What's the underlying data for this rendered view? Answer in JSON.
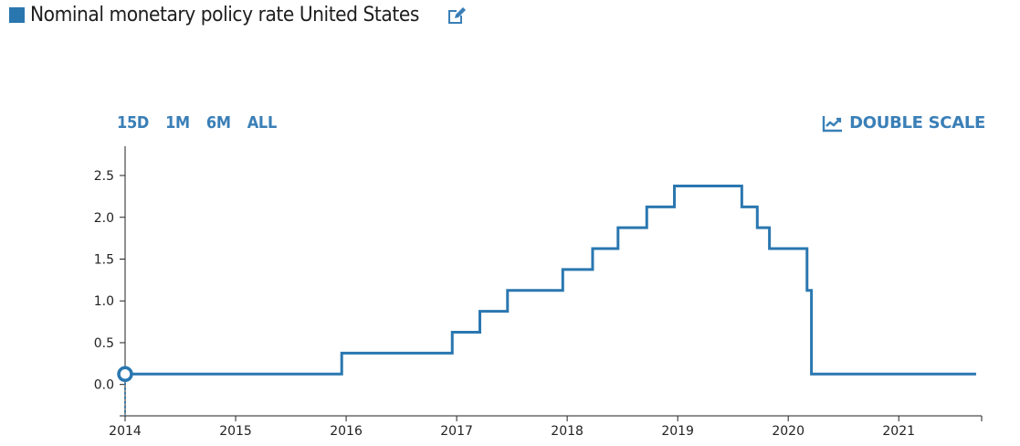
{
  "title": "Nominal monetary policy rate United States",
  "colors": {
    "series": "#2a77b0",
    "accent": "#3a7fb7",
    "axis": "#222222"
  },
  "icons": {
    "edit": "edit-icon",
    "double_scale": "line-chart-icon"
  },
  "controls": {
    "ranges": [
      "15D",
      "1M",
      "6M",
      "ALL"
    ],
    "double_scale_label": "DOUBLE SCALE"
  },
  "chart_data": {
    "type": "line",
    "step": true,
    "x_start": 2014.0,
    "x_end": 2021.75,
    "ylim": [
      -0.375,
      2.85
    ],
    "yticks": [
      "0.0",
      "0.5",
      "1.0",
      "1.5",
      "2.0",
      "2.5"
    ],
    "xticks": [
      "2014",
      "2015",
      "2016",
      "2017",
      "2018",
      "2019",
      "2020",
      "2021"
    ],
    "grid": false,
    "marker_at_start": true,
    "series": [
      {
        "values": [
          [
            2014.0,
            0.125
          ],
          [
            2015.96,
            0.375
          ],
          [
            2016.96,
            0.625
          ],
          [
            2017.21,
            0.875
          ],
          [
            2017.46,
            1.125
          ],
          [
            2017.96,
            1.375
          ],
          [
            2018.23,
            1.625
          ],
          [
            2018.46,
            1.875
          ],
          [
            2018.72,
            2.125
          ],
          [
            2018.97,
            2.375
          ],
          [
            2019.58,
            2.125
          ],
          [
            2019.72,
            1.875
          ],
          [
            2019.83,
            1.625
          ],
          [
            2020.17,
            1.125
          ],
          [
            2020.21,
            0.125
          ],
          [
            2021.7,
            0.125
          ]
        ]
      }
    ]
  }
}
